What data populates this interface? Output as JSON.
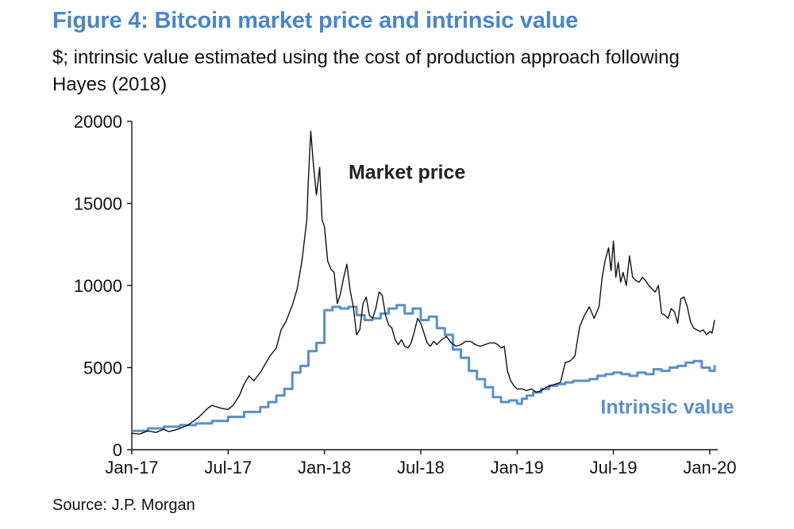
{
  "colors": {
    "title": "#4a86c5",
    "market": "#111111",
    "intrinsic": "#5b8fc9",
    "text": "#111111"
  },
  "header": {
    "title": "Figure 4: Bitcoin market price and intrinsic value",
    "subtitle": "$; intrinsic value estimated using the cost of production approach following Hayes (2018)"
  },
  "footer": {
    "source": "Source: J.P. Morgan"
  },
  "chart_data": {
    "type": "line",
    "title": "Figure 4: Bitcoin market price and intrinsic value",
    "xlabel": "",
    "ylabel": "$",
    "x_unit": "months since Jan-2017",
    "xlim": [
      0,
      36.5
    ],
    "ylim": [
      0,
      20000
    ],
    "yticks": [
      0,
      5000,
      10000,
      15000,
      20000
    ],
    "xticks": [
      {
        "value": 0,
        "label": "Jan-17"
      },
      {
        "value": 6,
        "label": "Jul-17"
      },
      {
        "value": 12,
        "label": "Jan-18"
      },
      {
        "value": 18,
        "label": "Jul-18"
      },
      {
        "value": 24,
        "label": "Jan-19"
      },
      {
        "value": 30,
        "label": "Jul-19"
      },
      {
        "value": 36,
        "label": "Jan-20"
      }
    ],
    "grid": false,
    "series": [
      {
        "name": "Market price",
        "label": "Market price",
        "label_position": {
          "x": 13.5,
          "y": 16500
        },
        "x": [
          0,
          0.5,
          1,
          1.5,
          2,
          2.3,
          2.7,
          3,
          3.5,
          4,
          4.3,
          4.7,
          5,
          5.3,
          5.7,
          6,
          6.3,
          6.7,
          7,
          7.3,
          7.6,
          8,
          8.3,
          8.6,
          9,
          9.3,
          9.6,
          10,
          10.3,
          10.6,
          10.9,
          11,
          11.15,
          11.3,
          11.5,
          11.7,
          11.85,
          12,
          12.2,
          12.4,
          12.6,
          12.8,
          13,
          13.2,
          13.4,
          13.6,
          13.8,
          14,
          14.2,
          14.4,
          14.6,
          14.8,
          15,
          15.2,
          15.4,
          15.6,
          15.8,
          16,
          16.2,
          16.4,
          16.6,
          16.8,
          17,
          17.2,
          17.4,
          17.6,
          17.8,
          18,
          18.2,
          18.4,
          18.6,
          18.8,
          19,
          19.3,
          19.6,
          19.9,
          20.2,
          20.5,
          20.8,
          21.1,
          21.4,
          21.7,
          22,
          22.3,
          22.6,
          22.8,
          23,
          23.2,
          23.4,
          23.6,
          23.8,
          24,
          24.3,
          24.6,
          24.9,
          25.2,
          25.5,
          25.8,
          26.1,
          26.4,
          26.7,
          27,
          27.3,
          27.6,
          27.9,
          28.2,
          28.5,
          28.8,
          29.1,
          29.3,
          29.5,
          29.7,
          29.85,
          30,
          30.15,
          30.3,
          30.45,
          30.6,
          30.8,
          31,
          31.2,
          31.4,
          31.6,
          31.8,
          32,
          32.2,
          32.4,
          32.6,
          32.8,
          33,
          33.2,
          33.4,
          33.6,
          33.8,
          34,
          34.2,
          34.4,
          34.6,
          34.8,
          35,
          35.2,
          35.4,
          35.6,
          35.8,
          36,
          36.15,
          36.3
        ],
        "values": [
          1000,
          950,
          1150,
          1050,
          1250,
          1100,
          1200,
          1300,
          1500,
          1850,
          2100,
          2500,
          2700,
          2600,
          2500,
          2450,
          2700,
          3300,
          4000,
          4500,
          4200,
          4700,
          5200,
          5700,
          6200,
          7300,
          7800,
          8800,
          9800,
          11500,
          14000,
          16500,
          19400,
          17500,
          15500,
          17200,
          14000,
          13600,
          11500,
          11000,
          10800,
          8900,
          9500,
          10500,
          11300,
          9700,
          8700,
          7000,
          7300,
          8900,
          9300,
          8200,
          8000,
          8600,
          9600,
          9400,
          8200,
          7600,
          7400,
          6700,
          6400,
          6700,
          6300,
          6200,
          6500,
          7200,
          8000,
          7700,
          7100,
          6500,
          6300,
          6600,
          6400,
          6700,
          6900,
          6500,
          6300,
          6400,
          6600,
          6600,
          6400,
          6300,
          6400,
          6500,
          6500,
          6400,
          6200,
          6300,
          4800,
          4200,
          3900,
          3700,
          3700,
          3600,
          3700,
          3500,
          3600,
          3800,
          3900,
          4000,
          4100,
          5300,
          5400,
          5700,
          7500,
          8200,
          8700,
          8000,
          8700,
          10500,
          11600,
          12300,
          10900,
          12700,
          10500,
          11400,
          10200,
          10800,
          10000,
          11800,
          10500,
          10300,
          10200,
          10500,
          10300,
          10000,
          9800,
          9600,
          10000,
          8300,
          8200,
          8000,
          8600,
          8400,
          7700,
          9200,
          9300,
          8700,
          7800,
          7400,
          7300,
          7200,
          7300,
          7000,
          7200,
          7100,
          7900
        ]
      },
      {
        "name": "Intrinsic value",
        "label": "Intrinsic value",
        "label_position": {
          "x": 29.2,
          "y": 2200
        },
        "step": true,
        "x": [
          0,
          1,
          2,
          3,
          4,
          5,
          6,
          7,
          8,
          8.5,
          9,
          9.5,
          10,
          10.5,
          11,
          11.5,
          12,
          12.5,
          13,
          13.5,
          14,
          14.5,
          15,
          15.5,
          16,
          16.5,
          17,
          17.5,
          18,
          18.5,
          19,
          19.5,
          20,
          20.5,
          21,
          21.5,
          22,
          22.5,
          23,
          23.5,
          24,
          24.3,
          24.6,
          25,
          25.5,
          26,
          26.5,
          27,
          27.5,
          28,
          28.5,
          29,
          29.5,
          30,
          30.5,
          31,
          31.5,
          32,
          32.5,
          33,
          33.5,
          34,
          34.5,
          35,
          35.5,
          36,
          36.3
        ],
        "values": [
          1150,
          1300,
          1400,
          1500,
          1600,
          1750,
          2000,
          2300,
          2600,
          2900,
          3300,
          3700,
          4700,
          5100,
          6000,
          6500,
          8500,
          8700,
          8600,
          8700,
          8200,
          7900,
          8000,
          8300,
          8600,
          8800,
          8300,
          8600,
          7900,
          8100,
          7400,
          7000,
          6100,
          5600,
          4800,
          4300,
          3800,
          3200,
          2900,
          3000,
          2800,
          3100,
          3300,
          3500,
          3700,
          3900,
          4000,
          4100,
          4200,
          4200,
          4300,
          4500,
          4600,
          4700,
          4600,
          4500,
          4700,
          4600,
          4900,
          4800,
          5000,
          5100,
          5300,
          5400,
          5000,
          4800,
          5150
        ]
      }
    ]
  }
}
